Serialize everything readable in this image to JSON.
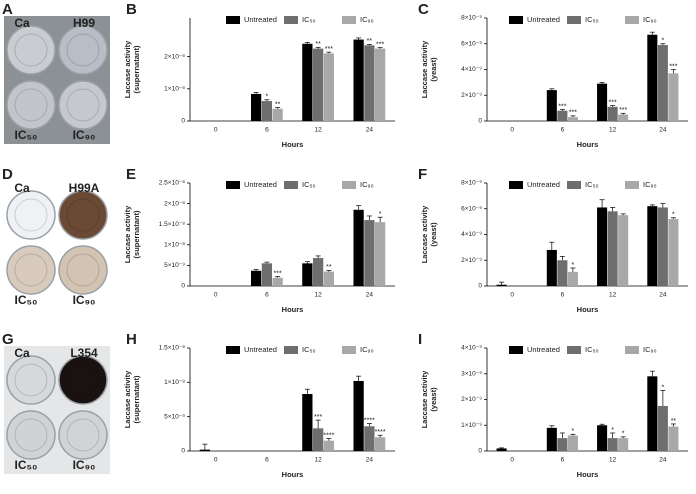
{
  "photos": [
    {
      "panel": "A",
      "labels": [
        "Ca",
        "H99",
        "IC₅₀",
        "IC₉₀"
      ]
    },
    {
      "panel": "D",
      "labels": [
        "Ca",
        "H99A",
        "IC₅₀",
        "IC₉₀"
      ]
    },
    {
      "panel": "G",
      "labels": [
        "Ca",
        "L354",
        "IC₅₀",
        "IC₉₀"
      ]
    }
  ],
  "chart_data": [
    {
      "type": "bar",
      "panel": "B",
      "xlabel": "Hours",
      "ylabel": [
        "Laccase activity",
        "(supernatant)"
      ],
      "categories": [
        "0",
        "6",
        "12",
        "24"
      ],
      "ylim": [
        0,
        3.2e-08
      ],
      "yticks": [
        0,
        {
          "value": 1e-08,
          "label": "1×10⁻⁸"
        },
        {
          "value": 2e-08,
          "label": "2×10⁻⁸"
        }
      ],
      "series": [
        {
          "name": "Untreated",
          "color": "#000000",
          "values": [
            0,
            8.4e-09,
            2.4e-08,
            2.53e-08
          ],
          "errors": [
            null,
            5e-10,
            4e-10,
            5e-10
          ],
          "annotations": [
            null,
            null,
            null,
            null
          ]
        },
        {
          "name": "IC₅₀",
          "color": "#6e6e6e",
          "values": [
            0,
            6.2e-09,
            2.25e-08,
            2.35e-08
          ],
          "errors": [
            null,
            4e-10,
            4e-10,
            3e-10
          ],
          "annotations": [
            null,
            "*",
            "**",
            "**"
          ]
        },
        {
          "name": "IC₉₀",
          "color": "#a8a8a8",
          "values": [
            0,
            3.8e-09,
            2.1e-08,
            2.25e-08
          ],
          "errors": [
            null,
            4e-10,
            4e-10,
            3e-10
          ],
          "annotations": [
            null,
            "**",
            "***",
            "***"
          ]
        }
      ]
    },
    {
      "type": "bar",
      "panel": "C",
      "xlabel": "Hours",
      "ylabel": [
        "Laccase activity",
        "(yeast)"
      ],
      "categories": [
        "0",
        "6",
        "12",
        "24"
      ],
      "ylim": [
        0,
        8e-09
      ],
      "yticks": [
        0,
        {
          "value": 2e-09,
          "label": "2×10⁻⁹"
        },
        {
          "value": 4e-09,
          "label": "4×10⁻⁹"
        },
        {
          "value": 6e-09,
          "label": "6×10⁻⁹"
        },
        {
          "value": 8e-09,
          "label": "8×10⁻⁹"
        }
      ],
      "series": [
        {
          "name": "Untreated",
          "color": "#000000",
          "values": [
            0,
            2.4e-09,
            2.9e-09,
            6.7e-09
          ],
          "errors": [
            null,
            1e-10,
            1e-10,
            2e-10
          ],
          "annotations": [
            null,
            null,
            null,
            null
          ]
        },
        {
          "name": "IC₅₀",
          "color": "#6e6e6e",
          "values": [
            0,
            8e-10,
            1.1e-09,
            5.9e-09
          ],
          "errors": [
            null,
            1e-10,
            1e-10,
            1e-10
          ],
          "annotations": [
            null,
            "***",
            "***",
            "*"
          ]
        },
        {
          "name": "IC₉₀",
          "color": "#a8a8a8",
          "values": [
            0,
            3e-10,
            5e-10,
            3.7e-09
          ],
          "errors": [
            null,
            1e-10,
            1e-10,
            3e-10
          ],
          "annotations": [
            null,
            "***",
            "***",
            "***"
          ]
        }
      ]
    },
    {
      "type": "bar",
      "panel": "E",
      "xlabel": "Hours",
      "ylabel": [
        "Laccase activity",
        "(supernatant)"
      ],
      "categories": [
        "0",
        "6",
        "12",
        "24"
      ],
      "ylim": [
        0,
        2.5e-08
      ],
      "yticks": [
        0,
        {
          "value": 5e-09,
          "label": "5×10⁻⁹"
        },
        {
          "value": 1e-08,
          "label": "1×10⁻⁸"
        },
        {
          "value": 1.5e-08,
          "label": "1.5×10⁻⁸"
        },
        {
          "value": 2e-08,
          "label": "2×10⁻⁸"
        },
        {
          "value": 2.5e-08,
          "label": "2.5×10⁻⁸"
        }
      ],
      "series": [
        {
          "name": "Untreated",
          "color": "#000000",
          "values": [
            0,
            3.7e-09,
            5.5e-09,
            1.85e-08
          ],
          "errors": [
            null,
            3e-10,
            4e-10,
            1e-09
          ],
          "annotations": [
            null,
            null,
            null,
            null
          ]
        },
        {
          "name": "IC₅₀",
          "color": "#6e6e6e",
          "values": [
            0,
            5.5e-09,
            6.8e-09,
            1.6e-08
          ],
          "errors": [
            null,
            3e-10,
            5e-10,
            1e-09
          ],
          "annotations": [
            null,
            null,
            null,
            null
          ]
        },
        {
          "name": "IC₉₀",
          "color": "#a8a8a8",
          "values": [
            0,
            2e-09,
            3.5e-09,
            1.55e-08
          ],
          "errors": [
            null,
            3e-10,
            3e-10,
            1.2e-09
          ],
          "annotations": [
            null,
            "***",
            "**",
            "*"
          ]
        }
      ]
    },
    {
      "type": "bar",
      "panel": "F",
      "xlabel": "Hours",
      "ylabel": [
        "Laccase activity",
        "(yeast)"
      ],
      "categories": [
        "0",
        "6",
        "12",
        "24"
      ],
      "ylim": [
        0,
        8e-09
      ],
      "yticks": [
        0,
        {
          "value": 2e-09,
          "label": "2×10⁻⁹"
        },
        {
          "value": 4e-09,
          "label": "4×10⁻⁹"
        },
        {
          "value": 6e-09,
          "label": "6×10⁻⁹"
        },
        {
          "value": 8e-09,
          "label": "8×10⁻⁹"
        }
      ],
      "series": [
        {
          "name": "Untreated",
          "color": "#000000",
          "values": [
            1e-10,
            2.8e-09,
            6.1e-09,
            6.2e-09
          ],
          "errors": [
            2e-10,
            6e-10,
            6e-10,
            1e-10
          ],
          "annotations": [
            null,
            null,
            null,
            null
          ]
        },
        {
          "name": "IC₅₀",
          "color": "#6e6e6e",
          "values": [
            0,
            2e-09,
            5.8e-09,
            6.1e-09
          ],
          "errors": [
            null,
            3e-10,
            3e-10,
            3e-10
          ],
          "annotations": [
            null,
            null,
            null,
            null
          ]
        },
        {
          "name": "IC₉₀",
          "color": "#a8a8a8",
          "values": [
            0,
            1.1e-09,
            5.5e-09,
            5.2e-09
          ],
          "errors": [
            null,
            3e-10,
            1e-10,
            1e-10
          ],
          "annotations": [
            null,
            "*",
            null,
            "*"
          ]
        }
      ]
    },
    {
      "type": "bar",
      "panel": "H",
      "xlabel": "Hours",
      "ylabel": [
        "Laccase activity",
        "(supernatant)"
      ],
      "categories": [
        "0",
        "6",
        "12",
        "24"
      ],
      "ylim": [
        0,
        1.5e-08
      ],
      "yticks": [
        0,
        {
          "value": 5e-09,
          "label": "5×10⁻⁹"
        },
        {
          "value": 1e-08,
          "label": "1×10⁻⁸"
        },
        {
          "value": 1.5e-08,
          "label": "1.5×10⁻⁸"
        }
      ],
      "series": [
        {
          "name": "Untreated",
          "color": "#000000",
          "values": [
            2e-10,
            0,
            8.3e-09,
            1.02e-08
          ],
          "errors": [
            8e-10,
            null,
            7e-10,
            7e-10
          ],
          "annotations": [
            null,
            null,
            null,
            null
          ]
        },
        {
          "name": "IC₅₀",
          "color": "#6e6e6e",
          "values": [
            0,
            0,
            3.3e-09,
            3.6e-09
          ],
          "errors": [
            null,
            null,
            1.2e-09,
            4e-10
          ],
          "annotations": [
            null,
            null,
            "***",
            "****"
          ]
        },
        {
          "name": "IC₉₀",
          "color": "#a8a8a8",
          "values": [
            0,
            0,
            1.5e-09,
            2e-09
          ],
          "errors": [
            null,
            null,
            3e-10,
            3e-10
          ],
          "annotations": [
            null,
            null,
            "****",
            "****"
          ]
        }
      ]
    },
    {
      "type": "bar",
      "panel": "I",
      "xlabel": "Hours",
      "ylabel": [
        "Laccase activity",
        "(yeast)"
      ],
      "categories": [
        "0",
        "6",
        "12",
        "24"
      ],
      "ylim": [
        0,
        4e-09
      ],
      "yticks": [
        0,
        {
          "value": 1e-09,
          "label": "1×10⁻⁹"
        },
        {
          "value": 2e-09,
          "label": "2×10⁻⁹"
        },
        {
          "value": 3e-09,
          "label": "3×10⁻⁹"
        },
        {
          "value": 4e-09,
          "label": "4×10⁻⁹"
        }
      ],
      "series": [
        {
          "name": "Untreated",
          "color": "#000000",
          "values": [
            1e-10,
            9e-10,
            1e-09,
            2.9e-09
          ],
          "errors": [
            2e-11,
            8e-11,
            4e-11,
            2e-10
          ],
          "annotations": [
            null,
            null,
            null,
            null
          ]
        },
        {
          "name": "IC₅₀",
          "color": "#6e6e6e",
          "values": [
            0,
            5e-10,
            5e-10,
            1.75e-09
          ],
          "errors": [
            null,
            2e-10,
            2e-10,
            6e-10
          ],
          "annotations": [
            null,
            null,
            "*",
            "*"
          ]
        },
        {
          "name": "IC₉₀",
          "color": "#a8a8a8",
          "values": [
            0,
            6e-10,
            5e-10,
            9.5e-10
          ],
          "errors": [
            null,
            5e-11,
            5e-11,
            1e-10
          ],
          "annotations": [
            null,
            "*",
            "*",
            "**"
          ]
        }
      ]
    }
  ]
}
